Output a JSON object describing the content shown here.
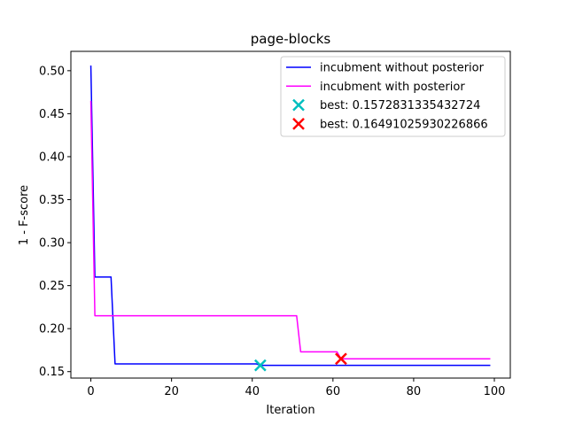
{
  "chart_data": {
    "type": "line",
    "title": "page-blocks",
    "xlabel": "Iteration",
    "ylabel": "1 - F-score",
    "xlim": [
      -4.95,
      103.95
    ],
    "ylim": [
      0.1425,
      0.5225
    ],
    "xticks": [
      0,
      20,
      40,
      60,
      80,
      100
    ],
    "yticks": [
      0.15,
      0.2,
      0.25,
      0.3,
      0.35,
      0.4,
      0.45,
      0.5
    ],
    "ytick_labels": [
      "0.15",
      "0.20",
      "0.25",
      "0.30",
      "0.35",
      "0.40",
      "0.45",
      "0.50"
    ],
    "legend_position": "upper right",
    "grid": false,
    "series": [
      {
        "name": "incubment without posterior",
        "color": "#0000ff",
        "x": [
          0,
          1,
          1,
          5,
          6,
          6,
          41,
          42,
          42,
          99
        ],
        "y": [
          0.506,
          0.26,
          0.26,
          0.26,
          0.159,
          0.159,
          0.159,
          0.1573,
          0.1573,
          0.1573
        ]
      },
      {
        "name": "incubment with posterior",
        "color": "#ff00ff",
        "x": [
          0,
          1,
          1,
          51,
          52,
          52,
          61,
          62,
          62,
          99
        ],
        "y": [
          0.465,
          0.215,
          0.215,
          0.215,
          0.173,
          0.173,
          0.173,
          0.1649,
          0.1649,
          0.1649
        ]
      }
    ],
    "markers": [
      {
        "name": "best: 0.1572831335432724",
        "x": 42,
        "y": 0.1573,
        "color": "#00bfbf"
      },
      {
        "name": "best: 0.16491025930226866",
        "x": 62,
        "y": 0.1649,
        "color": "#ff0000"
      }
    ]
  }
}
